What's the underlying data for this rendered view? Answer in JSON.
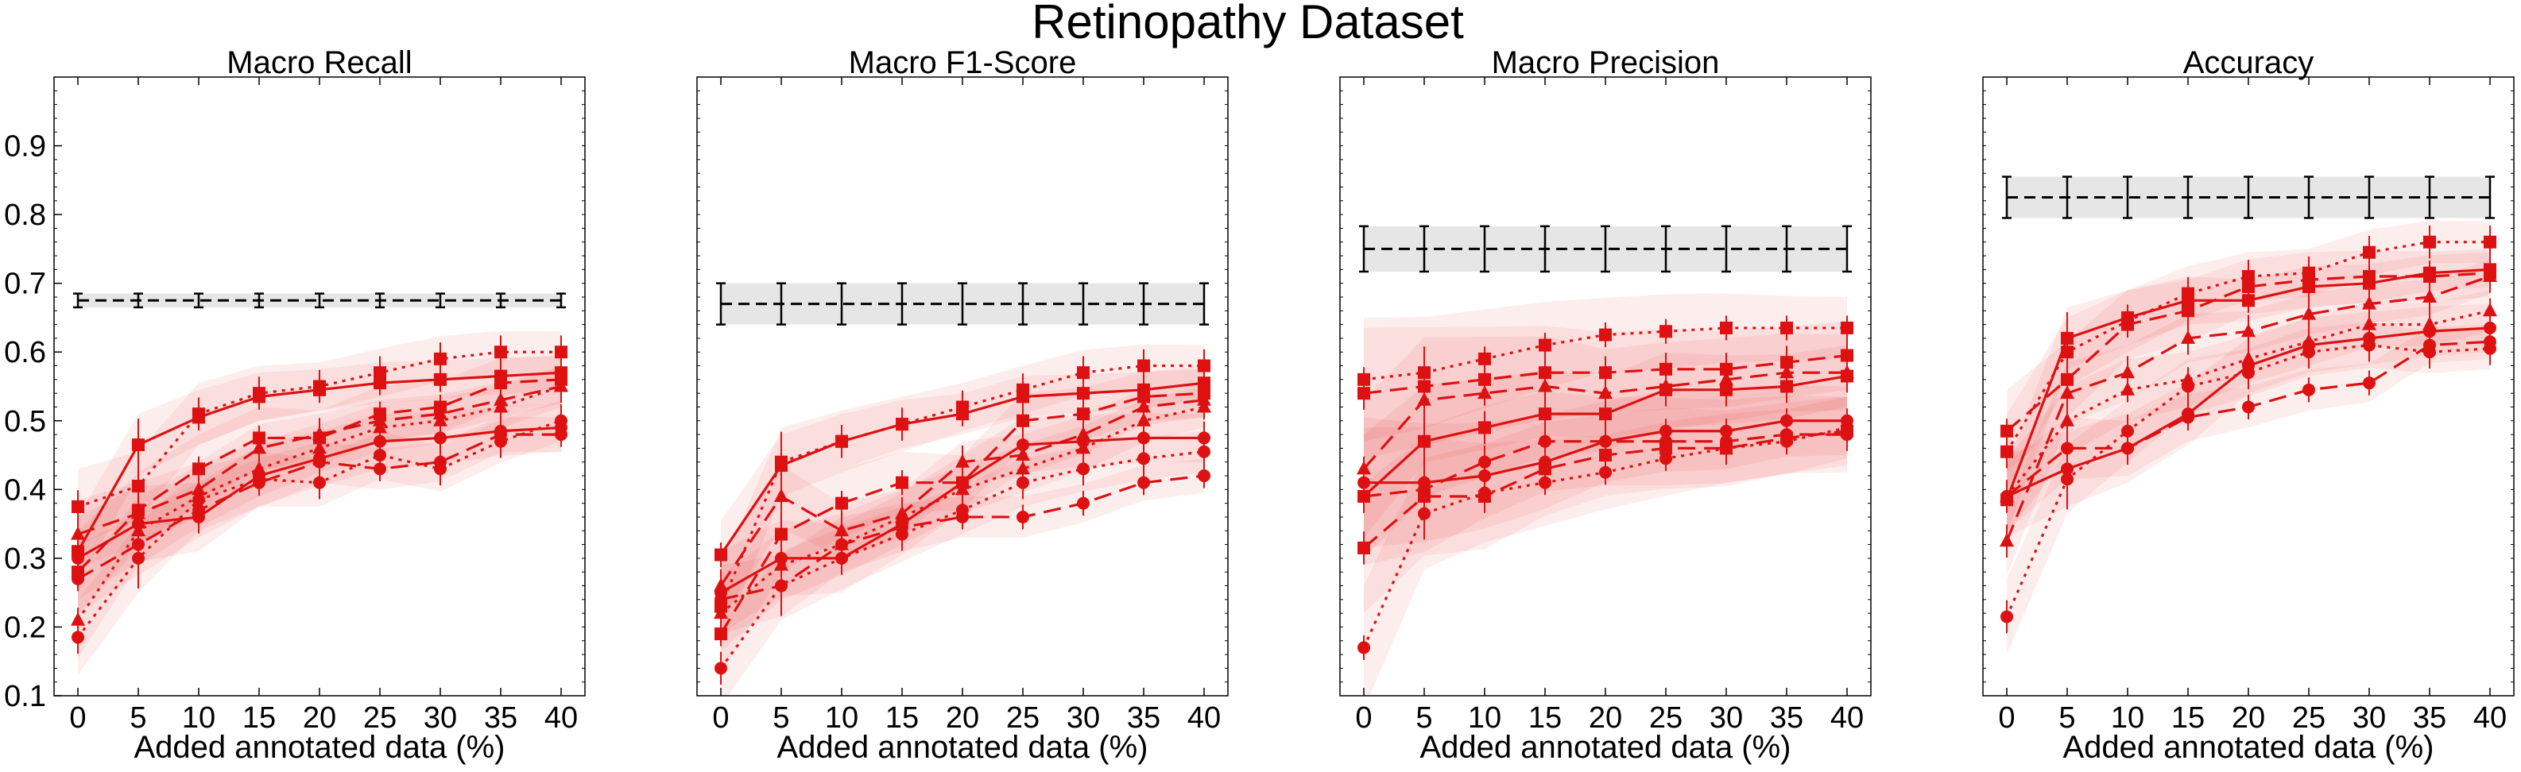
{
  "figure": {
    "suptitle": "Retinopathy Dataset",
    "colors": {
      "method": "#dd1111",
      "baseline": "#000000",
      "baseline_band": "#e6e6e6"
    }
  },
  "chart_data": [
    {
      "type": "line",
      "title": "Macro Recall",
      "xlabel": "Added annotated data (%)",
      "ylabel": "",
      "x": [
        0,
        5,
        10,
        15,
        20,
        25,
        30,
        35,
        40
      ],
      "ylim": [
        0.1,
        1.0
      ],
      "yticks": [
        0.1,
        0.2,
        0.3,
        0.4,
        0.5,
        0.6,
        0.7,
        0.8,
        0.9
      ],
      "grid": false,
      "baseline": {
        "value": 0.675,
        "err": 0.01,
        "style": "dashed"
      },
      "series": [
        {
          "style": "solid",
          "marker": "square",
          "values": [
            0.31,
            0.465,
            0.505,
            0.535,
            0.545,
            0.555,
            0.56,
            0.565,
            0.57
          ]
        },
        {
          "style": "dotted",
          "marker": "square",
          "values": [
            0.375,
            0.405,
            0.51,
            0.54,
            0.55,
            0.57,
            0.59,
            0.6,
            0.6
          ]
        },
        {
          "style": "dashed",
          "marker": "square",
          "values": [
            0.28,
            0.37,
            0.43,
            0.475,
            0.475,
            0.51,
            0.52,
            0.555,
            0.56
          ]
        },
        {
          "style": "dashed",
          "marker": "triangle",
          "values": [
            0.335,
            0.365,
            0.4,
            0.46,
            0.48,
            0.5,
            0.51,
            0.53,
            0.55
          ]
        },
        {
          "style": "dotted",
          "marker": "triangle",
          "values": [
            0.21,
            0.34,
            0.39,
            0.43,
            0.46,
            0.49,
            0.5,
            0.52,
            0.55
          ]
        },
        {
          "style": "solid",
          "marker": "circle",
          "values": [
            0.3,
            0.35,
            0.36,
            0.42,
            0.445,
            0.47,
            0.475,
            0.485,
            0.49
          ]
        },
        {
          "style": "dashed",
          "marker": "circle",
          "values": [
            0.27,
            0.32,
            0.37,
            0.41,
            0.44,
            0.43,
            0.44,
            0.48,
            0.48
          ]
        },
        {
          "style": "dotted",
          "marker": "circle",
          "values": [
            0.185,
            0.3,
            0.385,
            0.415,
            0.41,
            0.45,
            0.43,
            0.47,
            0.5
          ]
        }
      ]
    },
    {
      "type": "line",
      "title": "Macro F1-Score",
      "xlabel": "Added annotated data (%)",
      "ylabel": "",
      "x": [
        0,
        5,
        10,
        15,
        20,
        25,
        30,
        35,
        40
      ],
      "ylim": [
        0.1,
        1.0
      ],
      "grid": false,
      "baseline": {
        "value": 0.67,
        "err": 0.03,
        "style": "dashed"
      },
      "series": [
        {
          "style": "solid",
          "marker": "square",
          "values": [
            0.305,
            0.435,
            0.47,
            0.495,
            0.51,
            0.535,
            0.54,
            0.545,
            0.555
          ]
        },
        {
          "style": "dotted",
          "marker": "square",
          "values": [
            0.23,
            0.44,
            0.47,
            0.495,
            0.52,
            0.545,
            0.57,
            0.58,
            0.58
          ]
        },
        {
          "style": "dashed",
          "marker": "square",
          "values": [
            0.19,
            0.335,
            0.38,
            0.41,
            0.41,
            0.5,
            0.51,
            0.535,
            0.54
          ]
        },
        {
          "style": "dashed",
          "marker": "triangle",
          "values": [
            0.26,
            0.39,
            0.34,
            0.365,
            0.44,
            0.45,
            0.48,
            0.52,
            0.53
          ]
        },
        {
          "style": "dotted",
          "marker": "triangle",
          "values": [
            0.22,
            0.29,
            0.32,
            0.36,
            0.4,
            0.43,
            0.46,
            0.5,
            0.52
          ]
        },
        {
          "style": "solid",
          "marker": "circle",
          "values": [
            0.25,
            0.3,
            0.3,
            0.35,
            0.41,
            0.465,
            0.47,
            0.475,
            0.475
          ]
        },
        {
          "style": "dashed",
          "marker": "circle",
          "values": [
            0.24,
            0.26,
            0.32,
            0.345,
            0.36,
            0.36,
            0.38,
            0.41,
            0.42
          ]
        },
        {
          "style": "dotted",
          "marker": "circle",
          "values": [
            0.14,
            0.26,
            0.3,
            0.335,
            0.37,
            0.41,
            0.43,
            0.445,
            0.455
          ]
        }
      ]
    },
    {
      "type": "line",
      "title": "Macro Precision",
      "xlabel": "Added annotated data (%)",
      "ylabel": "",
      "x": [
        0,
        5,
        10,
        15,
        20,
        25,
        30,
        35,
        40
      ],
      "ylim": [
        0.1,
        1.0
      ],
      "grid": false,
      "baseline": {
        "value": 0.75,
        "err": 0.033,
        "style": "dashed"
      },
      "series": [
        {
          "style": "dotted",
          "marker": "square",
          "values": [
            0.56,
            0.57,
            0.59,
            0.61,
            0.625,
            0.63,
            0.635,
            0.635,
            0.635
          ]
        },
        {
          "style": "dashed",
          "marker": "square",
          "values": [
            0.54,
            0.55,
            0.56,
            0.57,
            0.57,
            0.575,
            0.575,
            0.585,
            0.595
          ]
        },
        {
          "style": "dashed",
          "marker": "triangle",
          "values": [
            0.43,
            0.53,
            0.54,
            0.55,
            0.54,
            0.55,
            0.56,
            0.57,
            0.57
          ]
        },
        {
          "style": "solid",
          "marker": "square",
          "values": [
            0.39,
            0.47,
            0.49,
            0.51,
            0.51,
            0.545,
            0.545,
            0.55,
            0.565
          ]
        },
        {
          "style": "solid",
          "marker": "circle",
          "values": [
            0.41,
            0.41,
            0.42,
            0.44,
            0.47,
            0.485,
            0.485,
            0.5,
            0.5
          ]
        },
        {
          "style": "dashed",
          "marker": "circle",
          "values": [
            0.39,
            0.4,
            0.44,
            0.47,
            0.47,
            0.47,
            0.47,
            0.48,
            0.48
          ]
        },
        {
          "style": "dotted",
          "marker": "circle",
          "values": [
            0.17,
            0.365,
            0.395,
            0.41,
            0.425,
            0.445,
            0.46,
            0.47,
            0.49
          ]
        },
        {
          "style": "dashed",
          "marker": "square",
          "values": [
            0.315,
            0.39,
            0.39,
            0.43,
            0.45,
            0.46,
            0.46,
            0.475,
            0.485
          ]
        }
      ]
    },
    {
      "type": "line",
      "title": "Accuracy",
      "xlabel": "Added annotated data (%)",
      "ylabel": "",
      "x": [
        0,
        5,
        10,
        15,
        20,
        25,
        30,
        35,
        40
      ],
      "ylim": [
        0.1,
        1.0
      ],
      "grid": false,
      "baseline": {
        "value": 0.825,
        "err": 0.03,
        "style": "dashed"
      },
      "series": [
        {
          "style": "solid",
          "marker": "square",
          "values": [
            0.385,
            0.62,
            0.65,
            0.675,
            0.675,
            0.695,
            0.7,
            0.715,
            0.72
          ]
        },
        {
          "style": "dotted",
          "marker": "square",
          "values": [
            0.455,
            0.6,
            0.645,
            0.685,
            0.71,
            0.715,
            0.745,
            0.76,
            0.76
          ]
        },
        {
          "style": "dashed",
          "marker": "square",
          "values": [
            0.485,
            0.56,
            0.64,
            0.66,
            0.695,
            0.705,
            0.71,
            0.71,
            0.715
          ]
        },
        {
          "style": "dashed",
          "marker": "triangle",
          "values": [
            0.325,
            0.54,
            0.57,
            0.62,
            0.63,
            0.655,
            0.67,
            0.68,
            0.71
          ]
        },
        {
          "style": "dotted",
          "marker": "triangle",
          "values": [
            0.39,
            0.5,
            0.545,
            0.56,
            0.59,
            0.615,
            0.64,
            0.64,
            0.66
          ]
        },
        {
          "style": "solid",
          "marker": "circle",
          "values": [
            0.39,
            0.43,
            0.46,
            0.51,
            0.58,
            0.61,
            0.62,
            0.63,
            0.635
          ]
        },
        {
          "style": "dashed",
          "marker": "circle",
          "values": [
            0.39,
            0.46,
            0.46,
            0.505,
            0.52,
            0.545,
            0.555,
            0.61,
            0.615
          ]
        },
        {
          "style": "dotted",
          "marker": "circle",
          "values": [
            0.215,
            0.415,
            0.485,
            0.55,
            0.57,
            0.6,
            0.61,
            0.6,
            0.605
          ]
        }
      ]
    }
  ]
}
